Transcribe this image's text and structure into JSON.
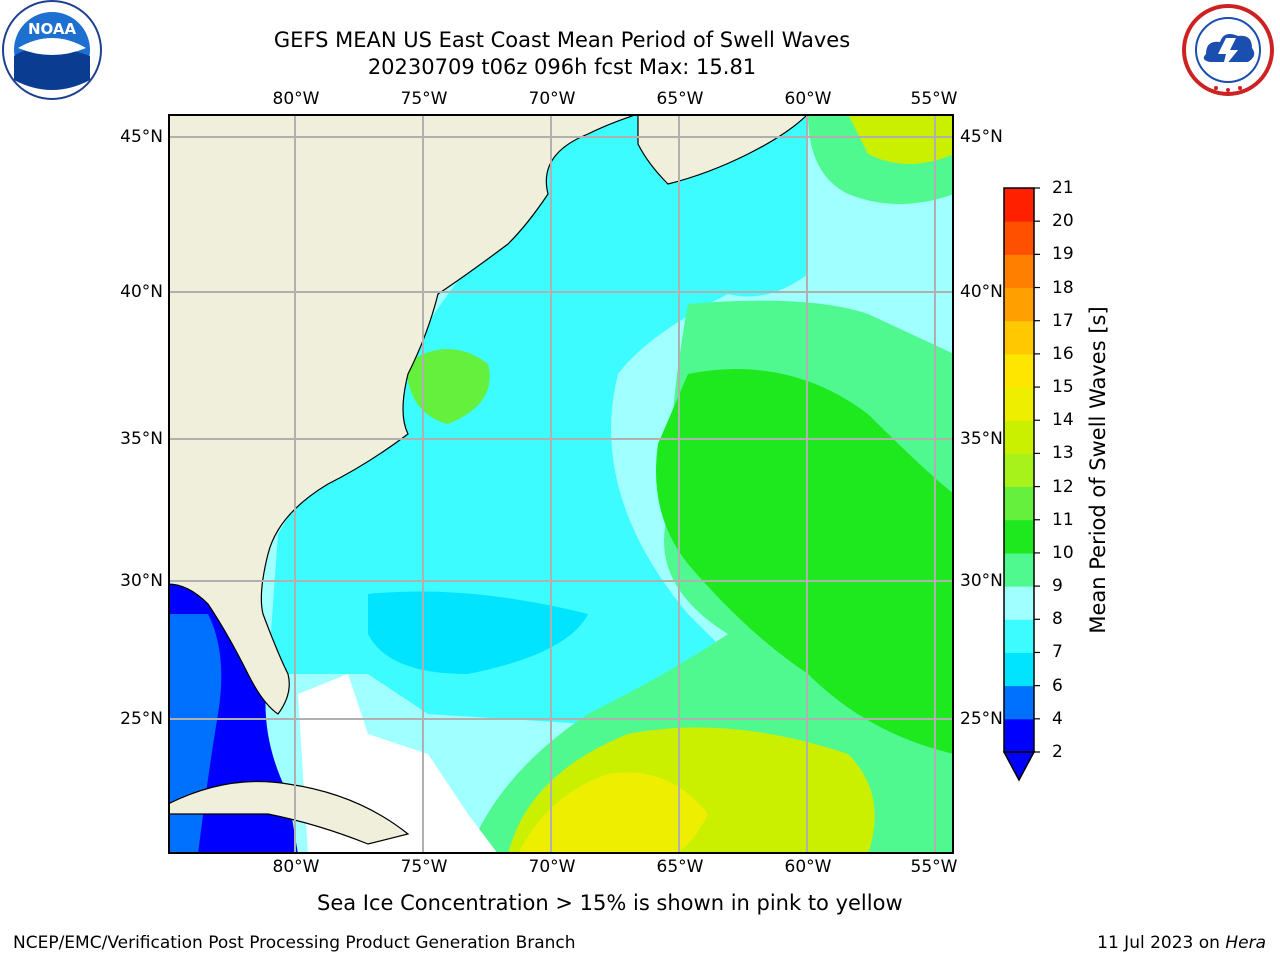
{
  "header": {
    "title": "GEFS MEAN US East Coast Mean Period of Swell Waves",
    "subtitle": "20230709 t06z 096h fcst   Max: 15.81"
  },
  "logos": {
    "left": {
      "name": "NOAA",
      "text": "NOAA"
    },
    "right": {
      "name": "National Weather Service"
    }
  },
  "map": {
    "longitude_ticks": [
      "80°W",
      "75°W",
      "70°W",
      "65°W",
      "60°W",
      "55°W"
    ],
    "latitude_ticks": [
      "45°N",
      "40°N",
      "35°N",
      "30°N",
      "25°N"
    ]
  },
  "colorbar": {
    "label": "Mean Period of Swell Waves [s]",
    "ticks": [
      "2",
      "4",
      "6",
      "7",
      "8",
      "9",
      "10",
      "11",
      "12",
      "13",
      "14",
      "15",
      "16",
      "17",
      "18",
      "19",
      "20",
      "21"
    ],
    "colors": [
      "#0000ff",
      "#0070ff",
      "#00e4ff",
      "#3cfcff",
      "#a0ffff",
      "#50f890",
      "#1ee81e",
      "#64f03c",
      "#a8f21c",
      "#caf000",
      "#eeee00",
      "#ffe600",
      "#ffc800",
      "#ffa000",
      "#ff8000",
      "#ff5000",
      "#ff2000"
    ]
  },
  "footer": {
    "note": "Sea Ice Concentration > 15% is shown in pink to yellow",
    "credit": "NCEP/EMC/Verification Post Processing Product Generation Branch",
    "date": "11 Jul 2023 on ",
    "host": "Hera"
  }
}
